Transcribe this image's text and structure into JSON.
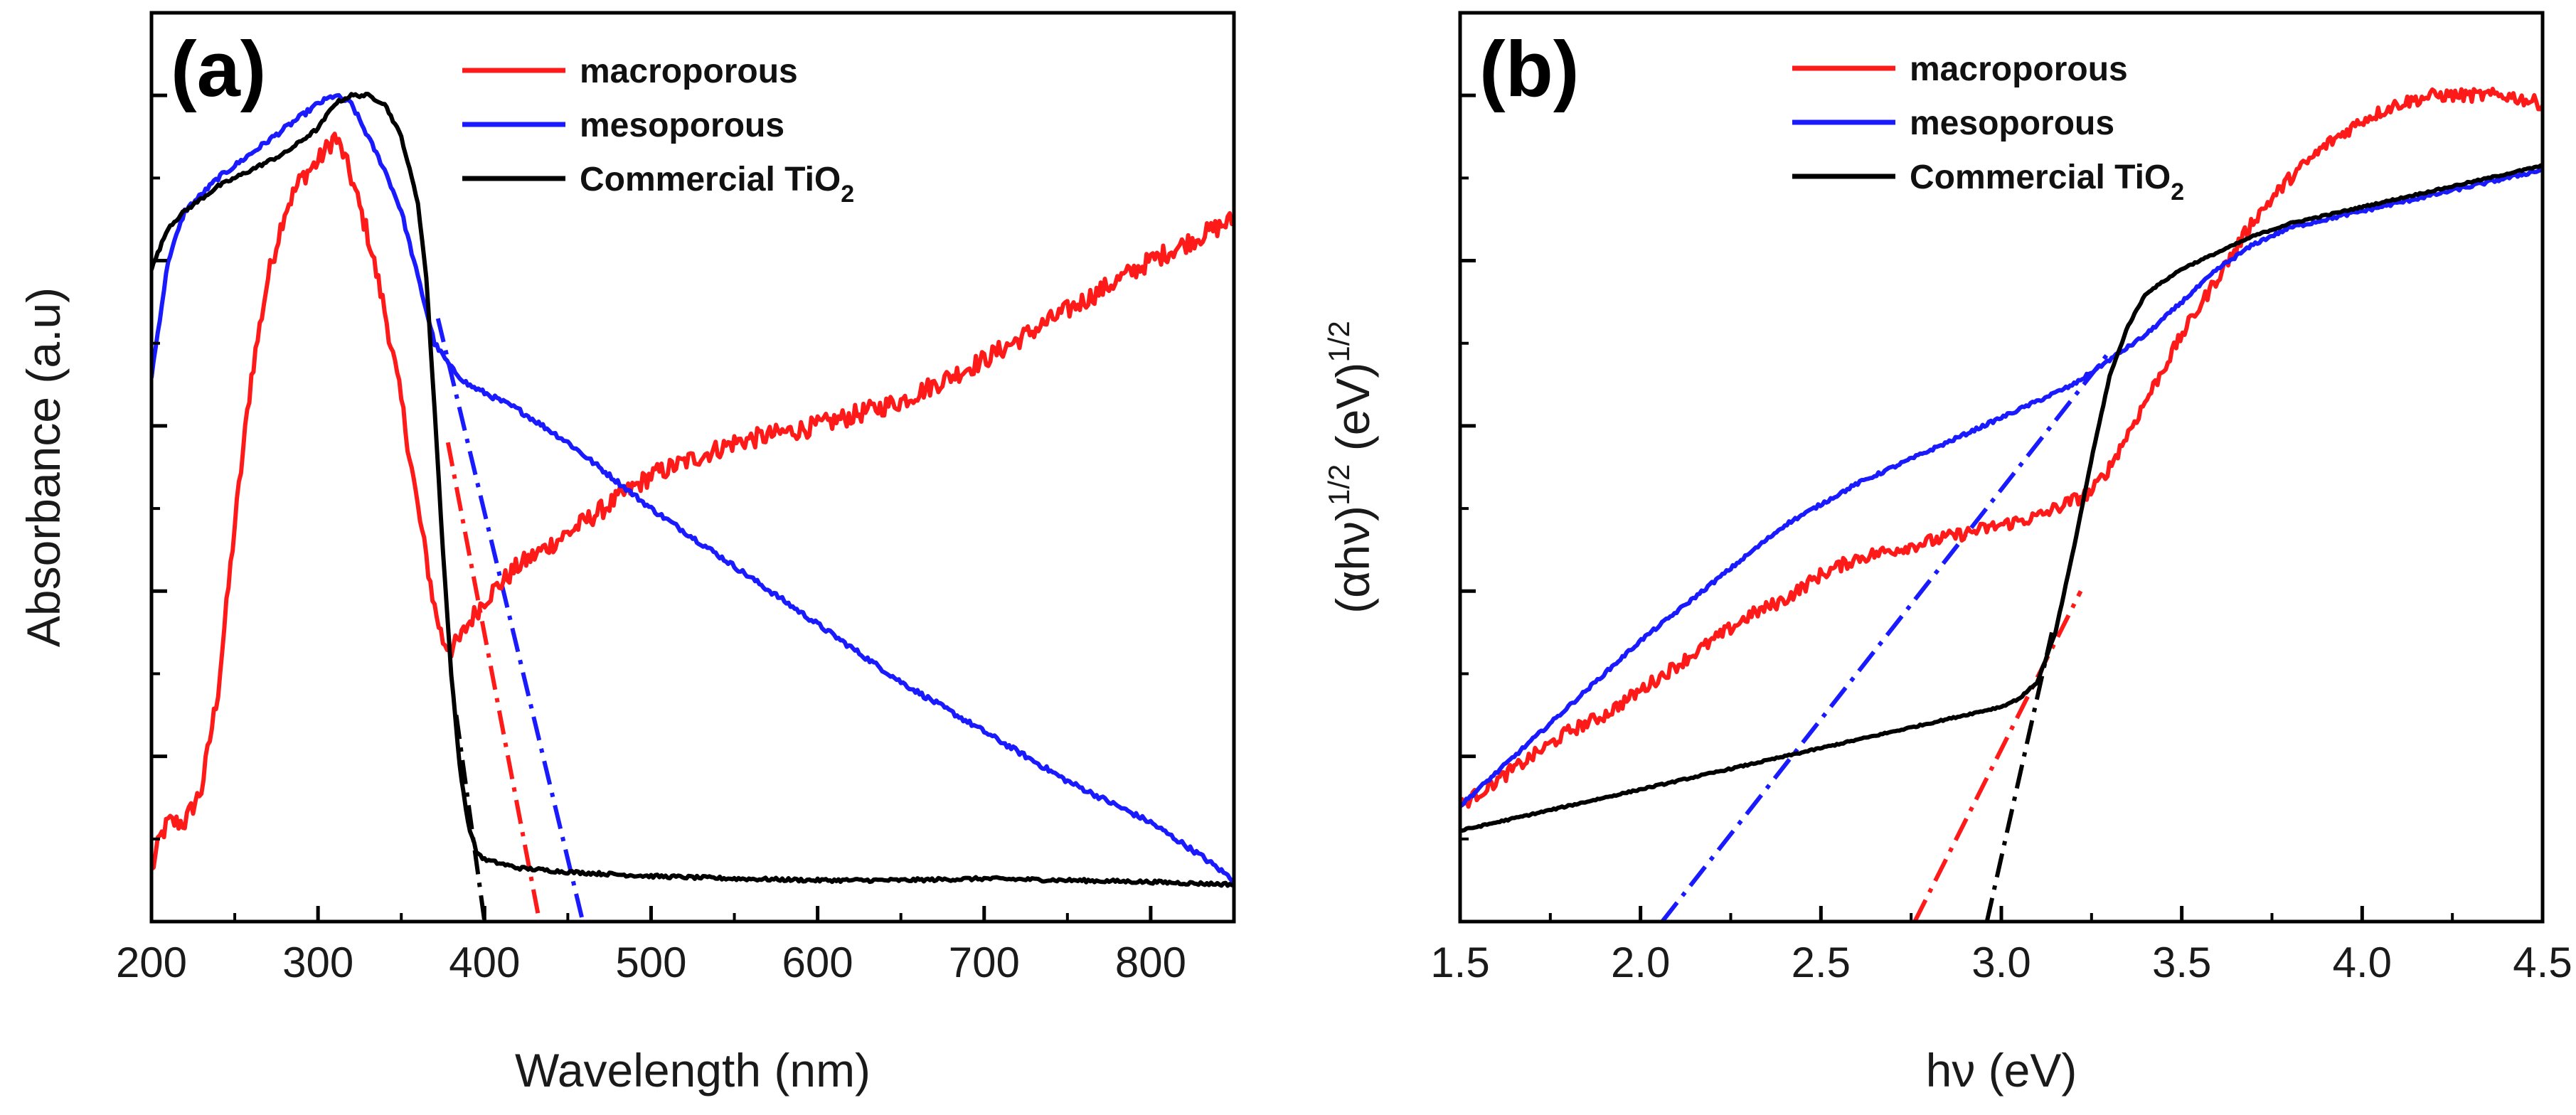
{
  "colors": {
    "macroporous": "#ff1a1a",
    "mesoporous": "#1a1aff",
    "commercial": "#000000"
  },
  "legend": [
    {
      "key": "macroporous",
      "label": "macroporous"
    },
    {
      "key": "mesoporous",
      "label": "mesoporous"
    },
    {
      "key": "commercial",
      "label": "Commercial TiO",
      "sub": "2"
    }
  ],
  "chart_data": [
    {
      "type": "line",
      "panel_label": "(a)",
      "xlabel": "Wavelength (nm)",
      "ylabel": "Absorbance (a.u)",
      "xlim": [
        200,
        850
      ],
      "ylim": [
        0,
        1.1
      ],
      "xticks": [
        200,
        300,
        400,
        500,
        600,
        700,
        800
      ],
      "yticks": [
        0.1,
        0.2,
        0.3,
        0.4,
        0.5,
        0.6,
        0.7,
        0.8,
        0.9,
        1.0
      ],
      "show_ytick_labels": false,
      "series": [
        {
          "name": "macroporous",
          "color_key": "macroporous",
          "x": [
            200,
            205,
            210,
            220,
            230,
            240,
            250,
            260,
            270,
            280,
            290,
            300,
            310,
            315,
            320,
            330,
            340,
            350,
            360,
            370,
            375,
            380,
            385,
            390,
            400,
            420,
            450,
            500,
            550,
            600,
            650,
            700,
            750,
            800,
            830,
            850
          ],
          "y": [
            0.06,
            0.1,
            0.12,
            0.12,
            0.16,
            0.28,
            0.48,
            0.66,
            0.78,
            0.86,
            0.9,
            0.92,
            0.95,
            0.93,
            0.9,
            0.83,
            0.74,
            0.63,
            0.5,
            0.38,
            0.34,
            0.33,
            0.34,
            0.36,
            0.39,
            0.43,
            0.47,
            0.54,
            0.58,
            0.6,
            0.63,
            0.68,
            0.74,
            0.8,
            0.83,
            0.85
          ],
          "noise": 0.012
        },
        {
          "name": "mesoporous",
          "color_key": "mesoporous",
          "x": [
            200,
            210,
            220,
            240,
            260,
            280,
            300,
            310,
            320,
            330,
            340,
            350,
            360,
            370,
            380,
            390,
            400,
            420,
            450,
            500,
            550,
            600,
            650,
            700,
            750,
            800,
            830,
            850
          ],
          "y": [
            0.66,
            0.8,
            0.86,
            0.9,
            0.93,
            0.96,
            0.99,
            1.0,
            0.99,
            0.95,
            0.91,
            0.86,
            0.78,
            0.7,
            0.67,
            0.65,
            0.64,
            0.62,
            0.58,
            0.5,
            0.43,
            0.36,
            0.29,
            0.23,
            0.17,
            0.12,
            0.08,
            0.05
          ],
          "noise": 0.003
        },
        {
          "name": "Commercial TiO2",
          "color_key": "commercial",
          "x": [
            200,
            210,
            220,
            240,
            260,
            280,
            300,
            310,
            320,
            330,
            340,
            350,
            360,
            365,
            370,
            375,
            380,
            385,
            390,
            395,
            400,
            420,
            450,
            500,
            550,
            600,
            650,
            700,
            750,
            800,
            830,
            850
          ],
          "y": [
            0.79,
            0.84,
            0.86,
            0.89,
            0.91,
            0.93,
            0.96,
            0.99,
            1.0,
            1.0,
            0.99,
            0.95,
            0.87,
            0.78,
            0.62,
            0.45,
            0.3,
            0.19,
            0.12,
            0.085,
            0.075,
            0.065,
            0.06,
            0.055,
            0.052,
            0.05,
            0.05,
            0.052,
            0.05,
            0.048,
            0.046,
            0.045
          ],
          "noise": 0.002
        }
      ],
      "extrapolations": [
        {
          "color_key": "macroporous",
          "x": [
            378,
            433
          ],
          "y": [
            0.58,
            0.0
          ]
        },
        {
          "color_key": "mesoporous",
          "x": [
            372,
            459
          ],
          "y": [
            0.73,
            0.0
          ]
        },
        {
          "color_key": "commercial",
          "x": [
            383,
            400
          ],
          "y": [
            0.25,
            0.0
          ]
        }
      ]
    },
    {
      "type": "line",
      "panel_label": "(b)",
      "xlabel_main": "hν (eV)",
      "ylabel_base": "(αhν)",
      "ylabel_sup1": "1/2",
      "ylabel_mid": " (eV)",
      "ylabel_sup2": "1/2",
      "xlim": [
        1.5,
        4.5
      ],
      "ylim": [
        0,
        1.1
      ],
      "xticks": [
        1.5,
        2.0,
        2.5,
        3.0,
        3.5,
        4.0,
        4.5
      ],
      "xtick_labels": [
        "1.5",
        "2.0",
        "2.5",
        "3.0",
        "3.5",
        "4.0",
        "4.5"
      ],
      "yticks": [
        0.1,
        0.2,
        0.3,
        0.4,
        0.5,
        0.6,
        0.7,
        0.8,
        0.9,
        1.0
      ],
      "show_ytick_labels": false,
      "series": [
        {
          "name": "macroporous",
          "color_key": "macroporous",
          "x": [
            1.5,
            1.6,
            1.7,
            1.8,
            1.9,
            2.0,
            2.1,
            2.2,
            2.3,
            2.4,
            2.5,
            2.6,
            2.7,
            2.8,
            2.9,
            3.0,
            3.1,
            3.15,
            3.2,
            3.25,
            3.3,
            3.4,
            3.5,
            3.6,
            3.7,
            3.8,
            3.9,
            4.0,
            4.1,
            4.2,
            4.3,
            4.4,
            4.5
          ],
          "y": [
            0.14,
            0.17,
            0.2,
            0.23,
            0.25,
            0.28,
            0.31,
            0.34,
            0.37,
            0.39,
            0.42,
            0.44,
            0.45,
            0.46,
            0.47,
            0.48,
            0.49,
            0.5,
            0.51,
            0.52,
            0.55,
            0.63,
            0.71,
            0.78,
            0.85,
            0.9,
            0.94,
            0.97,
            0.99,
            1.0,
            1.0,
            1.0,
            0.99
          ],
          "noise": 0.008
        },
        {
          "name": "mesoporous",
          "color_key": "mesoporous",
          "x": [
            1.5,
            1.6,
            1.7,
            1.8,
            1.9,
            2.0,
            2.2,
            2.4,
            2.6,
            2.8,
            3.0,
            3.1,
            3.2,
            3.3,
            3.4,
            3.5,
            3.6,
            3.7,
            3.8,
            3.9,
            4.0,
            4.2,
            4.4,
            4.5
          ],
          "y": [
            0.14,
            0.18,
            0.22,
            0.26,
            0.3,
            0.34,
            0.41,
            0.48,
            0.53,
            0.57,
            0.61,
            0.63,
            0.65,
            0.68,
            0.71,
            0.75,
            0.79,
            0.82,
            0.84,
            0.85,
            0.86,
            0.88,
            0.9,
            0.91
          ],
          "noise": 0.002
        },
        {
          "name": "Commercial TiO2",
          "color_key": "commercial",
          "x": [
            1.5,
            1.7,
            1.9,
            2.1,
            2.3,
            2.5,
            2.7,
            2.9,
            3.0,
            3.05,
            3.1,
            3.15,
            3.2,
            3.25,
            3.3,
            3.35,
            3.4,
            3.5,
            3.6,
            3.7,
            3.8,
            3.9,
            4.0,
            4.1,
            4.2,
            4.3,
            4.4,
            4.5
          ],
          "y": [
            0.11,
            0.13,
            0.15,
            0.17,
            0.19,
            0.21,
            0.23,
            0.25,
            0.26,
            0.27,
            0.29,
            0.35,
            0.45,
            0.56,
            0.66,
            0.72,
            0.76,
            0.79,
            0.81,
            0.83,
            0.845,
            0.855,
            0.865,
            0.875,
            0.885,
            0.895,
            0.905,
            0.915
          ],
          "noise": 0.001
        }
      ],
      "extrapolations": [
        {
          "color_key": "mesoporous",
          "x": [
            2.06,
            3.3
          ],
          "y": [
            0.0,
            0.69
          ]
        },
        {
          "color_key": "macroporous",
          "x": [
            2.76,
            3.22
          ],
          "y": [
            0.0,
            0.4
          ]
        },
        {
          "color_key": "commercial",
          "x": [
            2.96,
            3.14
          ],
          "y": [
            0.0,
            0.35
          ]
        }
      ]
    }
  ]
}
